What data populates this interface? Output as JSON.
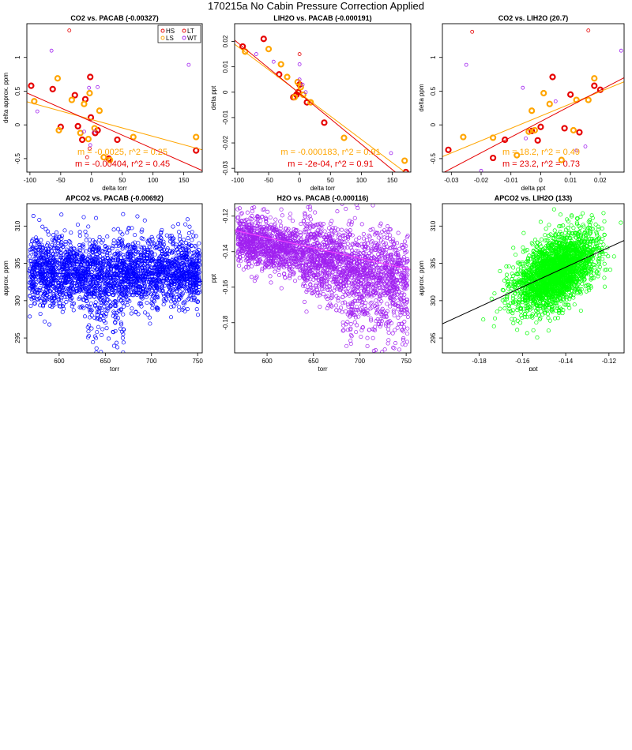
{
  "page": {
    "title": "170215a   No Cabin Pressure Correction Applied"
  },
  "chart_data": [
    {
      "type": "scatter",
      "title": "CO2 vs. PACAB (-0.00327)",
      "xlabel": "delta torr",
      "ylabel": "delta approx. ppm",
      "xlim": [
        -105,
        180
      ],
      "ylim": [
        -0.7,
        1.5
      ],
      "xticks": [
        -100,
        -50,
        0,
        50,
        100,
        150
      ],
      "yticks": [
        -0.5,
        0.0,
        0.5,
        1.0
      ],
      "legend": {
        "position": "top-right",
        "entries": [
          {
            "name": "HS",
            "color": "#e60000"
          },
          {
            "name": "LT",
            "color": "#e60000"
          },
          {
            "name": "LS",
            "color": "#ffa500"
          },
          {
            "name": "WT",
            "color": "#a020f0"
          }
        ]
      },
      "series": [
        {
          "name": "HS",
          "color": "#e60000",
          "style": "bold",
          "points": [
            [
              -98,
              0.58
            ],
            [
              -63,
              0.53
            ],
            [
              -27,
              0.44
            ],
            [
              -10,
              0.38
            ],
            [
              -2,
              0.71
            ],
            [
              -22,
              -0.02
            ],
            [
              -15,
              -0.22
            ],
            [
              -50,
              -0.03
            ],
            [
              10,
              -0.08
            ],
            [
              6,
              -0.12
            ],
            [
              28,
              -0.5
            ],
            [
              42,
              -0.22
            ],
            [
              170,
              -0.38
            ],
            [
              -1,
              0.11
            ]
          ]
        },
        {
          "name": "LS",
          "color": "#ffa500",
          "style": "bold",
          "points": [
            [
              -93,
              0.35
            ],
            [
              -55,
              0.69
            ],
            [
              -32,
              0.37
            ],
            [
              -12,
              0.31
            ],
            [
              -3,
              0.47
            ],
            [
              -18,
              -0.12
            ],
            [
              -53,
              -0.08
            ],
            [
              5,
              -0.05
            ],
            [
              13,
              0.21
            ],
            [
              30,
              -0.52
            ],
            [
              20,
              -0.48
            ],
            [
              -5,
              -0.21
            ],
            [
              68,
              -0.18
            ],
            [
              170,
              -0.18
            ]
          ]
        },
        {
          "name": "LT",
          "color": "#e60000",
          "style": "thin",
          "points": [
            [
              -36,
              1.4
            ],
            [
              -7,
              -0.48
            ],
            [
              -3,
              -0.35
            ]
          ]
        },
        {
          "name": "WT",
          "color": "#a020f0",
          "style": "thin",
          "points": [
            [
              -65,
              1.1
            ],
            [
              158,
              0.89
            ],
            [
              -88,
              0.2
            ],
            [
              -4,
              0.55
            ],
            [
              10,
              0.56
            ],
            [
              -2,
              -0.3
            ],
            [
              -12,
              -0.1
            ],
            [
              5,
              -0.1
            ]
          ]
        }
      ],
      "fits": [
        {
          "name": "LS",
          "color": "#ffa500",
          "m": -0.0025,
          "b": 0.08,
          "label": "m = -0.0025, r^2 = 0.25"
        },
        {
          "name": "HS",
          "color": "#e60000",
          "m": -0.00404,
          "b": 0.05,
          "label": "m = -0.00404, r^2 = 0.45"
        }
      ]
    },
    {
      "type": "scatter",
      "title": "LIH2O vs. PACAB (-0.000191)",
      "xlabel": "delta torr",
      "ylabel": "delta ppt",
      "xlim": [
        -105,
        180
      ],
      "ylim": [
        -0.0315,
        0.027
      ],
      "xticks": [
        -100,
        -50,
        0,
        50,
        100,
        150
      ],
      "yticks": [
        -0.03,
        -0.02,
        -0.01,
        0.0,
        0.01,
        0.02
      ],
      "series": [
        {
          "name": "HS",
          "color": "#e60000",
          "style": "bold",
          "points": [
            [
              -92,
              0.018
            ],
            [
              -58,
              0.021
            ],
            [
              -33,
              0.007
            ],
            [
              -10,
              -0.002
            ],
            [
              0,
              0.003
            ],
            [
              12,
              -0.004
            ],
            [
              -2,
              0.0
            ],
            [
              40,
              -0.012
            ],
            [
              172,
              -0.0315
            ],
            [
              -5,
              -0.001
            ]
          ]
        },
        {
          "name": "LS",
          "color": "#ffa500",
          "style": "bold",
          "points": [
            [
              -88,
              0.016
            ],
            [
              -50,
              0.017
            ],
            [
              -30,
              0.011
            ],
            [
              -20,
              0.006
            ],
            [
              -3,
              0.004
            ],
            [
              6,
              -0.001
            ],
            [
              18,
              -0.004
            ],
            [
              72,
              -0.018
            ],
            [
              170,
              -0.027
            ],
            [
              -8,
              -0.002
            ],
            [
              2,
              0.002
            ]
          ]
        },
        {
          "name": "LT",
          "color": "#e60000",
          "style": "thin",
          "points": [
            [
              0,
              0.015
            ]
          ]
        },
        {
          "name": "WT",
          "color": "#a020f0",
          "style": "thin",
          "points": [
            [
              -63,
              0.028
            ],
            [
              -70,
              0.015
            ],
            [
              -42,
              0.012
            ],
            [
              0,
              0.011
            ],
            [
              148,
              -0.024
            ],
            [
              0,
              0.005
            ],
            [
              10,
              0.0
            ],
            [
              5,
              0.003
            ]
          ]
        }
      ],
      "fits": [
        {
          "name": "LS",
          "color": "#ffa500",
          "m": -0.000183,
          "b": -0.0003,
          "label": "m = -0.000183, r^2 = 0.91"
        },
        {
          "name": "HS",
          "color": "#e60000",
          "m": -0.0002,
          "b": -0.0005,
          "label": "m = -2e-04, r^2 = 0.91"
        }
      ]
    },
    {
      "type": "scatter",
      "title": "CO2 vs. LIH2O (20.7)",
      "xlabel": "delta ppt",
      "ylabel": "delta ppm",
      "xlim": [
        -0.033,
        0.028
      ],
      "ylim": [
        -0.7,
        1.5
      ],
      "xticks": [
        -0.03,
        -0.02,
        -0.01,
        0.0,
        0.01,
        0.02
      ],
      "yticks": [
        -0.5,
        0.0,
        0.5,
        1.0
      ],
      "series": [
        {
          "name": "HS",
          "color": "#e60000",
          "style": "bold",
          "points": [
            [
              -0.031,
              -0.37
            ],
            [
              -0.012,
              -0.22
            ],
            [
              -0.003,
              -0.09
            ],
            [
              -0.001,
              -0.23
            ],
            [
              0.0,
              -0.03
            ],
            [
              0.004,
              0.71
            ],
            [
              0.008,
              -0.05
            ],
            [
              0.01,
              0.45
            ],
            [
              0.013,
              -0.11
            ],
            [
              0.018,
              0.58
            ],
            [
              0.02,
              0.52
            ],
            [
              -0.016,
              -0.49
            ]
          ]
        },
        {
          "name": "LS",
          "color": "#ffa500",
          "style": "bold",
          "points": [
            [
              -0.026,
              -0.18
            ],
            [
              -0.016,
              -0.19
            ],
            [
              -0.008,
              -0.45
            ],
            [
              -0.004,
              -0.1
            ],
            [
              -0.003,
              0.21
            ],
            [
              0.001,
              0.47
            ],
            [
              0.003,
              0.31
            ],
            [
              0.007,
              -0.52
            ],
            [
              0.011,
              -0.08
            ],
            [
              0.016,
              0.37
            ],
            [
              0.018,
              0.69
            ],
            [
              -0.002,
              -0.08
            ],
            [
              0.012,
              0.37
            ]
          ]
        },
        {
          "name": "LT",
          "color": "#e60000",
          "style": "thin",
          "points": [
            [
              -0.023,
              1.38
            ],
            [
              0.016,
              1.4
            ]
          ]
        },
        {
          "name": "WT",
          "color": "#a020f0",
          "style": "thin",
          "points": [
            [
              -0.025,
              0.89
            ],
            [
              0.027,
              1.1
            ],
            [
              -0.02,
              -0.68
            ],
            [
              -0.006,
              0.55
            ],
            [
              0.012,
              -0.38
            ],
            [
              0.015,
              -0.32
            ],
            [
              0.005,
              0.35
            ],
            [
              -0.005,
              -0.2
            ]
          ]
        }
      ],
      "fits": [
        {
          "name": "LS",
          "color": "#ffa500",
          "m": 18.2,
          "b": 0.13,
          "label": "m = 18.2, r^2 = 0.49"
        },
        {
          "name": "HS",
          "color": "#e60000",
          "m": 23.2,
          "b": 0.05,
          "label": "m = 23.2, r^2 = 0.73"
        }
      ]
    },
    {
      "type": "scatter",
      "title": "APCO2 vs. PACAB (-0.00692)",
      "xlabel": "torr",
      "ylabel": "approx. ppm",
      "xlim": [
        565,
        755
      ],
      "ylim": [
        293,
        313
      ],
      "xticks": [
        600,
        650,
        700,
        750
      ],
      "yticks": [
        295,
        300,
        305,
        310
      ],
      "cloud": {
        "color": "#0000ff",
        "count": 2600,
        "x_range": [
          568,
          752
        ],
        "y_center": 303.8,
        "y_spread": 2.3,
        "seed": 11,
        "shape": "apco2"
      },
      "fits": [
        {
          "color": "#0000ff",
          "m": -0.00692,
          "b": 307.8
        }
      ]
    },
    {
      "type": "scatter",
      "title": "H2O vs. PACAB (-0.000116)",
      "xlabel": "torr",
      "ylabel": "ppt",
      "xlim": [
        565,
        755
      ],
      "ylim": [
        -0.197,
        -0.113
      ],
      "xticks": [
        600,
        650,
        700,
        750
      ],
      "yticks": [
        -0.18,
        -0.16,
        -0.14,
        -0.12
      ],
      "cloud": {
        "color": "#a020f0",
        "count": 2600,
        "x_range": [
          568,
          752
        ],
        "y_center": -0.145,
        "y_spread": 0.009,
        "seed": 23,
        "shape": "h2o"
      },
      "fits": [
        {
          "color": "#ff44ff",
          "m": -0.000116,
          "b": -0.0625
        }
      ]
    },
    {
      "type": "scatter",
      "title": "APCO2 vs. LIH2O (133)",
      "xlabel": "ppt",
      "ylabel": "approx. ppm",
      "xlim": [
        -0.197,
        -0.113
      ],
      "ylim": [
        293,
        313
      ],
      "xticks": [
        -0.18,
        -0.16,
        -0.14,
        -0.12
      ],
      "yticks": [
        295,
        300,
        305,
        310
      ],
      "cloud": {
        "color": "#00ff00",
        "count": 2600,
        "x_center": -0.145,
        "x_spread": 0.009,
        "y_center": 303.8,
        "y_spread": 2.2,
        "seed": 37,
        "shape": "corr"
      },
      "fits": [
        {
          "color": "#000000",
          "m": 133,
          "b": 323.1
        }
      ]
    }
  ]
}
